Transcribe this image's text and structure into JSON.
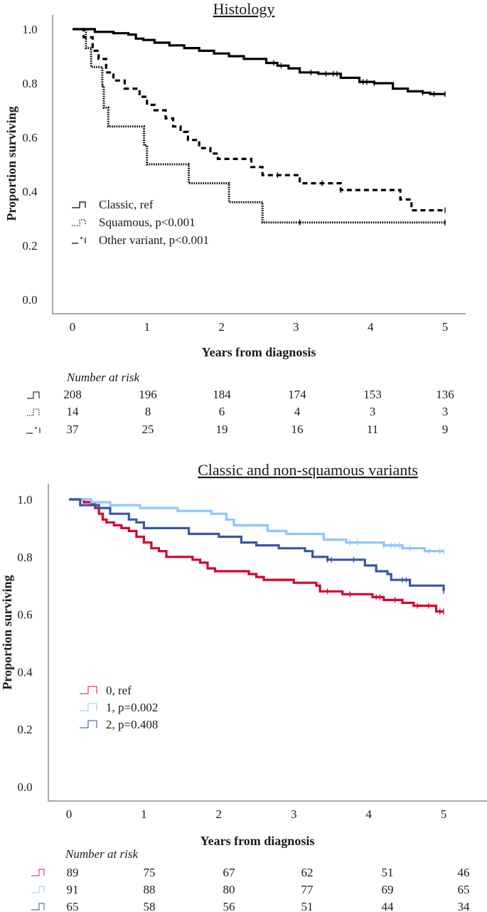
{
  "chart_data": [
    {
      "type": "line",
      "subtype": "kaplan-meier",
      "title": "Histology",
      "xlabel": "Years from diagnosis",
      "ylabel": "Proportion surviving",
      "xlim": [
        0,
        5
      ],
      "ylim": [
        0,
        1
      ],
      "x_ticks": [
        "0",
        "1",
        "2",
        "3",
        "4",
        "5"
      ],
      "y_ticks": [
        "0.0",
        "0.2",
        "0.4",
        "0.6",
        "0.8",
        "1.0"
      ],
      "grid": false,
      "legend_position": "bottom-left",
      "series": [
        {
          "name": "Classic, ref",
          "color": "#000000",
          "style": "solid",
          "points": [
            [
              0,
              1.0
            ],
            [
              0.2,
              1.0
            ],
            [
              0.3,
              0.99
            ],
            [
              0.55,
              0.985
            ],
            [
              0.75,
              0.98
            ],
            [
              0.85,
              0.965
            ],
            [
              0.95,
              0.96
            ],
            [
              1.1,
              0.95
            ],
            [
              1.3,
              0.94
            ],
            [
              1.5,
              0.93
            ],
            [
              1.7,
              0.92
            ],
            [
              1.9,
              0.91
            ],
            [
              2.1,
              0.9
            ],
            [
              2.3,
              0.89
            ],
            [
              2.6,
              0.875
            ],
            [
              2.75,
              0.865
            ],
            [
              2.9,
              0.855
            ],
            [
              3.05,
              0.84
            ],
            [
              3.3,
              0.835
            ],
            [
              3.6,
              0.82
            ],
            [
              3.85,
              0.805
            ],
            [
              4.05,
              0.8
            ],
            [
              4.3,
              0.78
            ],
            [
              4.5,
              0.77
            ],
            [
              4.7,
              0.765
            ],
            [
              4.8,
              0.76
            ],
            [
              5.0,
              0.76
            ]
          ],
          "censor_x": [
            2.7,
            2.8,
            3.2,
            3.4,
            3.5,
            3.55,
            3.9,
            3.95,
            4.05,
            4.7,
            4.85,
            5.0
          ]
        },
        {
          "name": "Squamous, p<0.001",
          "color": "#000000",
          "style": "dotted",
          "points": [
            [
              0,
              1.0
            ],
            [
              0.18,
              1.0
            ],
            [
              0.18,
              0.93
            ],
            [
              0.25,
              0.93
            ],
            [
              0.25,
              0.86
            ],
            [
              0.4,
              0.86
            ],
            [
              0.4,
              0.79
            ],
            [
              0.42,
              0.71
            ],
            [
              0.48,
              0.71
            ],
            [
              0.48,
              0.64
            ],
            [
              0.96,
              0.64
            ],
            [
              0.96,
              0.57
            ],
            [
              1.0,
              0.57
            ],
            [
              1.0,
              0.5
            ],
            [
              1.56,
              0.5
            ],
            [
              1.56,
              0.43
            ],
            [
              2.1,
              0.43
            ],
            [
              2.1,
              0.36
            ],
            [
              2.55,
              0.36
            ],
            [
              2.55,
              0.285
            ],
            [
              5.0,
              0.285
            ]
          ],
          "censor_x": [
            3.05,
            5.0
          ]
        },
        {
          "name": "Other variant, p<0.001",
          "color": "#000000",
          "style": "dashed",
          "points": [
            [
              0,
              1.0
            ],
            [
              0.15,
              1.0
            ],
            [
              0.15,
              0.97
            ],
            [
              0.27,
              0.97
            ],
            [
              0.27,
              0.92
            ],
            [
              0.35,
              0.89
            ],
            [
              0.45,
              0.84
            ],
            [
              0.55,
              0.81
            ],
            [
              0.7,
              0.78
            ],
            [
              0.9,
              0.75
            ],
            [
              1.0,
              0.72
            ],
            [
              1.1,
              0.7
            ],
            [
              1.25,
              0.67
            ],
            [
              1.35,
              0.64
            ],
            [
              1.45,
              0.62
            ],
            [
              1.55,
              0.59
            ],
            [
              1.7,
              0.56
            ],
            [
              1.85,
              0.54
            ],
            [
              1.95,
              0.52
            ],
            [
              2.3,
              0.52
            ],
            [
              2.4,
              0.49
            ],
            [
              2.55,
              0.46
            ],
            [
              2.9,
              0.46
            ],
            [
              3.05,
              0.43
            ],
            [
              3.55,
              0.43
            ],
            [
              3.6,
              0.405
            ],
            [
              4.3,
              0.405
            ],
            [
              4.4,
              0.37
            ],
            [
              4.55,
              0.33
            ],
            [
              5.0,
              0.33
            ]
          ],
          "censor_x": [
            2.75,
            3.35,
            3.6,
            5.0
          ]
        }
      ],
      "risk_table": {
        "header": "Number at risk",
        "rows": [
          {
            "series": "Classic, ref",
            "values": [
              "208",
              "196",
              "184",
              "174",
              "153",
              "136"
            ]
          },
          {
            "series": "Squamous, p<0.001",
            "values": [
              "14",
              "8",
              "6",
              "4",
              "3",
              "3"
            ]
          },
          {
            "series": "Other variant, p<0.001",
            "values": [
              "37",
              "25",
              "19",
              "16",
              "11",
              "9"
            ]
          }
        ]
      }
    },
    {
      "type": "line",
      "subtype": "kaplan-meier",
      "title": "Classic and non-squamous variants",
      "xlabel": "Years from diagnosis",
      "ylabel": "Proportion surviving",
      "xlim": [
        0,
        5
      ],
      "ylim": [
        0,
        1
      ],
      "x_ticks": [
        "0",
        "1",
        "2",
        "3",
        "4",
        "5"
      ],
      "y_ticks": [
        "0.0",
        "0.2",
        "0.4",
        "0.6",
        "0.8",
        "1.0"
      ],
      "grid": false,
      "legend_position": "bottom-left",
      "series": [
        {
          "name": "0, ref",
          "color": "#d6002e",
          "style": "solid",
          "points": [
            [
              0,
              1.0
            ],
            [
              0.2,
              1.0
            ],
            [
              0.2,
              0.99
            ],
            [
              0.3,
              0.985
            ],
            [
              0.35,
              0.97
            ],
            [
              0.4,
              0.95
            ],
            [
              0.45,
              0.93
            ],
            [
              0.5,
              0.92
            ],
            [
              0.6,
              0.91
            ],
            [
              0.7,
              0.9
            ],
            [
              0.8,
              0.89
            ],
            [
              0.9,
              0.87
            ],
            [
              1.0,
              0.85
            ],
            [
              1.1,
              0.83
            ],
            [
              1.2,
              0.82
            ],
            [
              1.3,
              0.8
            ],
            [
              1.55,
              0.8
            ],
            [
              1.65,
              0.79
            ],
            [
              1.75,
              0.78
            ],
            [
              1.85,
              0.76
            ],
            [
              1.95,
              0.75
            ],
            [
              2.3,
              0.75
            ],
            [
              2.4,
              0.74
            ],
            [
              2.5,
              0.73
            ],
            [
              2.6,
              0.72
            ],
            [
              2.9,
              0.72
            ],
            [
              3.0,
              0.71
            ],
            [
              3.2,
              0.71
            ],
            [
              3.3,
              0.7
            ],
            [
              3.35,
              0.68
            ],
            [
              3.6,
              0.68
            ],
            [
              3.65,
              0.67
            ],
            [
              4.0,
              0.67
            ],
            [
              4.05,
              0.66
            ],
            [
              4.2,
              0.65
            ],
            [
              4.4,
              0.65
            ],
            [
              4.45,
              0.64
            ],
            [
              4.6,
              0.63
            ],
            [
              4.8,
              0.63
            ],
            [
              4.9,
              0.61
            ],
            [
              5.0,
              0.61
            ]
          ],
          "censor_x": [
            3.45,
            3.75,
            4.1,
            4.15,
            4.35,
            4.65,
            4.8,
            4.95,
            5.0
          ]
        },
        {
          "name": "1, p=0.002",
          "color": "#8ec5ff",
          "style": "solid",
          "points": [
            [
              0,
              1.0
            ],
            [
              0.3,
              1.0
            ],
            [
              0.3,
              0.99
            ],
            [
              0.55,
              0.98
            ],
            [
              0.85,
              0.98
            ],
            [
              0.95,
              0.97
            ],
            [
              1.4,
              0.97
            ],
            [
              1.45,
              0.96
            ],
            [
              1.8,
              0.96
            ],
            [
              1.9,
              0.95
            ],
            [
              2.1,
              0.93
            ],
            [
              2.2,
              0.91
            ],
            [
              2.55,
              0.91
            ],
            [
              2.65,
              0.89
            ],
            [
              2.8,
              0.89
            ],
            [
              2.9,
              0.88
            ],
            [
              3.3,
              0.88
            ],
            [
              3.4,
              0.86
            ],
            [
              3.6,
              0.86
            ],
            [
              3.7,
              0.85
            ],
            [
              4.15,
              0.85
            ],
            [
              4.2,
              0.84
            ],
            [
              4.4,
              0.84
            ],
            [
              4.45,
              0.83
            ],
            [
              4.7,
              0.83
            ],
            [
              4.75,
              0.82
            ],
            [
              5.0,
              0.82
            ]
          ],
          "censor_x": [
            3.75,
            3.85,
            4.2,
            4.3,
            4.35,
            4.4,
            4.55,
            4.8,
            4.95,
            5.0
          ]
        },
        {
          "name": "2, p=0.408",
          "color": "#3a56a8",
          "style": "solid",
          "points": [
            [
              0,
              1.0
            ],
            [
              0.15,
              1.0
            ],
            [
              0.15,
              0.98
            ],
            [
              0.35,
              0.98
            ],
            [
              0.4,
              0.97
            ],
            [
              0.5,
              0.97
            ],
            [
              0.55,
              0.95
            ],
            [
              0.7,
              0.95
            ],
            [
              0.8,
              0.93
            ],
            [
              0.9,
              0.92
            ],
            [
              1.0,
              0.9
            ],
            [
              1.5,
              0.9
            ],
            [
              1.6,
              0.88
            ],
            [
              1.9,
              0.88
            ],
            [
              2.0,
              0.87
            ],
            [
              2.2,
              0.87
            ],
            [
              2.3,
              0.85
            ],
            [
              2.5,
              0.84
            ],
            [
              2.7,
              0.84
            ],
            [
              2.8,
              0.83
            ],
            [
              3.0,
              0.83
            ],
            [
              3.15,
              0.82
            ],
            [
              3.25,
              0.8
            ],
            [
              3.45,
              0.79
            ],
            [
              3.9,
              0.79
            ],
            [
              3.95,
              0.77
            ],
            [
              4.05,
              0.77
            ],
            [
              4.1,
              0.75
            ],
            [
              4.25,
              0.74
            ],
            [
              4.3,
              0.72
            ],
            [
              4.5,
              0.72
            ],
            [
              4.55,
              0.7
            ],
            [
              4.95,
              0.7
            ],
            [
              5.0,
              0.68
            ]
          ],
          "censor_x": [
            3.45,
            3.5,
            3.8,
            4.45,
            4.5,
            5.0
          ]
        }
      ],
      "risk_table": {
        "header": "Number at risk",
        "rows": [
          {
            "series": "0, ref",
            "values": [
              "89",
              "75",
              "67",
              "62",
              "51",
              "46"
            ]
          },
          {
            "series": "1, p=0.002",
            "values": [
              "91",
              "88",
              "80",
              "77",
              "69",
              "65"
            ]
          },
          {
            "series": "2, p=0.408",
            "values": [
              "65",
              "58",
              "56",
              "51",
              "44",
              "34"
            ]
          }
        ]
      }
    }
  ]
}
